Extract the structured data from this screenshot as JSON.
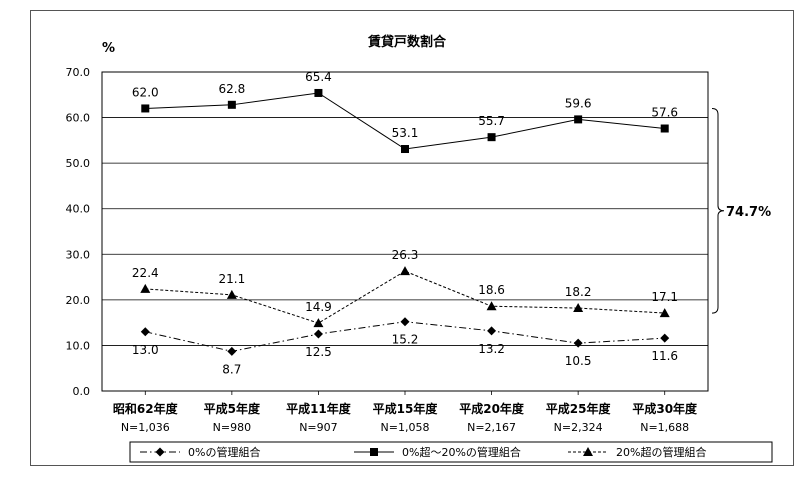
{
  "chart_data": {
    "type": "line",
    "title": "賃貸戸数割合",
    "ylabel": "%",
    "xlabel": "",
    "ylim": [
      0,
      70
    ],
    "yticks": [
      "0.0",
      "10.0",
      "20.0",
      "30.0",
      "40.0",
      "50.0",
      "60.0",
      "70.0"
    ],
    "grid": true,
    "legend_position": "bottom",
    "categories": [
      {
        "year": "昭和62年度",
        "n": "N=1,036"
      },
      {
        "year": "平成5年度",
        "n": "N=980"
      },
      {
        "year": "平成11年度",
        "n": "N=907"
      },
      {
        "year": "平成15年度",
        "n": "N=1,058"
      },
      {
        "year": "平成20年度",
        "n": "N=2,167"
      },
      {
        "year": "平成25年度",
        "n": "N=2,324"
      },
      {
        "year": "平成30年度",
        "n": "N=1,688"
      }
    ],
    "series": [
      {
        "name": "0%の管理組合",
        "marker": "diamond",
        "dash": "dashdot",
        "label_position": "below",
        "values": [
          13.0,
          8.7,
          12.5,
          15.2,
          13.2,
          10.5,
          11.6
        ],
        "labels": [
          "13.0",
          "8.7",
          "12.5",
          "15.2",
          "13.2",
          "10.5",
          "11.6"
        ]
      },
      {
        "name": "0%超～20%の管理組合",
        "marker": "square",
        "dash": "solid",
        "label_position": "above",
        "values": [
          62.0,
          62.8,
          65.4,
          53.1,
          55.7,
          59.6,
          57.6
        ],
        "labels": [
          "62.0",
          "62.8",
          "65.4",
          "53.1",
          "55.7",
          "59.6",
          "57.6"
        ]
      },
      {
        "name": "20%超の管理組合",
        "marker": "triangle",
        "dash": "dashed",
        "label_position": "above",
        "values": [
          22.4,
          21.1,
          14.9,
          26.3,
          18.6,
          18.2,
          17.1
        ],
        "labels": [
          "22.4",
          "21.1",
          "14.9",
          "26.3",
          "18.6",
          "18.2",
          "17.1"
        ]
      }
    ],
    "annotation": {
      "text": "74.7%",
      "from_value": 17.1,
      "to_value": 57.6
    }
  }
}
